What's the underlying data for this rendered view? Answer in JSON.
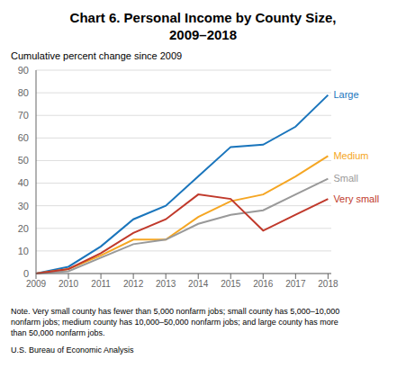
{
  "chart_data": {
    "type": "line",
    "title": "Chart 6. Personal Income by County Size,\n2009–2018",
    "y_label": "Cumulative percent change since 2009",
    "x": [
      2009,
      2010,
      2011,
      2012,
      2013,
      2014,
      2015,
      2016,
      2017,
      2018
    ],
    "series": [
      {
        "name": "Large",
        "color": "#1a75bc",
        "values": [
          0,
          3,
          12,
          24,
          30,
          43,
          56,
          57,
          65,
          79
        ]
      },
      {
        "name": "Medium",
        "color": "#f5a623",
        "values": [
          0,
          2,
          8,
          15,
          15,
          25,
          32,
          35,
          43,
          52
        ]
      },
      {
        "name": "Small",
        "color": "#999999",
        "values": [
          0,
          1,
          7,
          13,
          15,
          22,
          26,
          28,
          35,
          42
        ]
      },
      {
        "name": "Very small",
        "color": "#c0392b",
        "values": [
          0,
          2,
          9,
          18,
          24,
          35,
          33,
          19,
          26,
          33
        ]
      }
    ],
    "xlim": [
      2009,
      2018.1
    ],
    "xticks": [
      2009,
      2010,
      2011,
      2012,
      2013,
      2014,
      2015,
      2016,
      2017,
      2018
    ],
    "ylim": [
      0,
      90
    ],
    "yticks": [
      0,
      10,
      20,
      30,
      40,
      50,
      60,
      70,
      80,
      90
    ],
    "grid": true,
    "annotations": [
      "Note. Very small county has fewer than 5,000 nonfarm jobs; small county has 5,000–10,000\nnonfarm jobs; medium county has 10,000–50,000 nonfarm jobs; and large county has more\nthan 50,000 nonfarm jobs.",
      "U.S. Bureau of Economic Analysis"
    ]
  }
}
